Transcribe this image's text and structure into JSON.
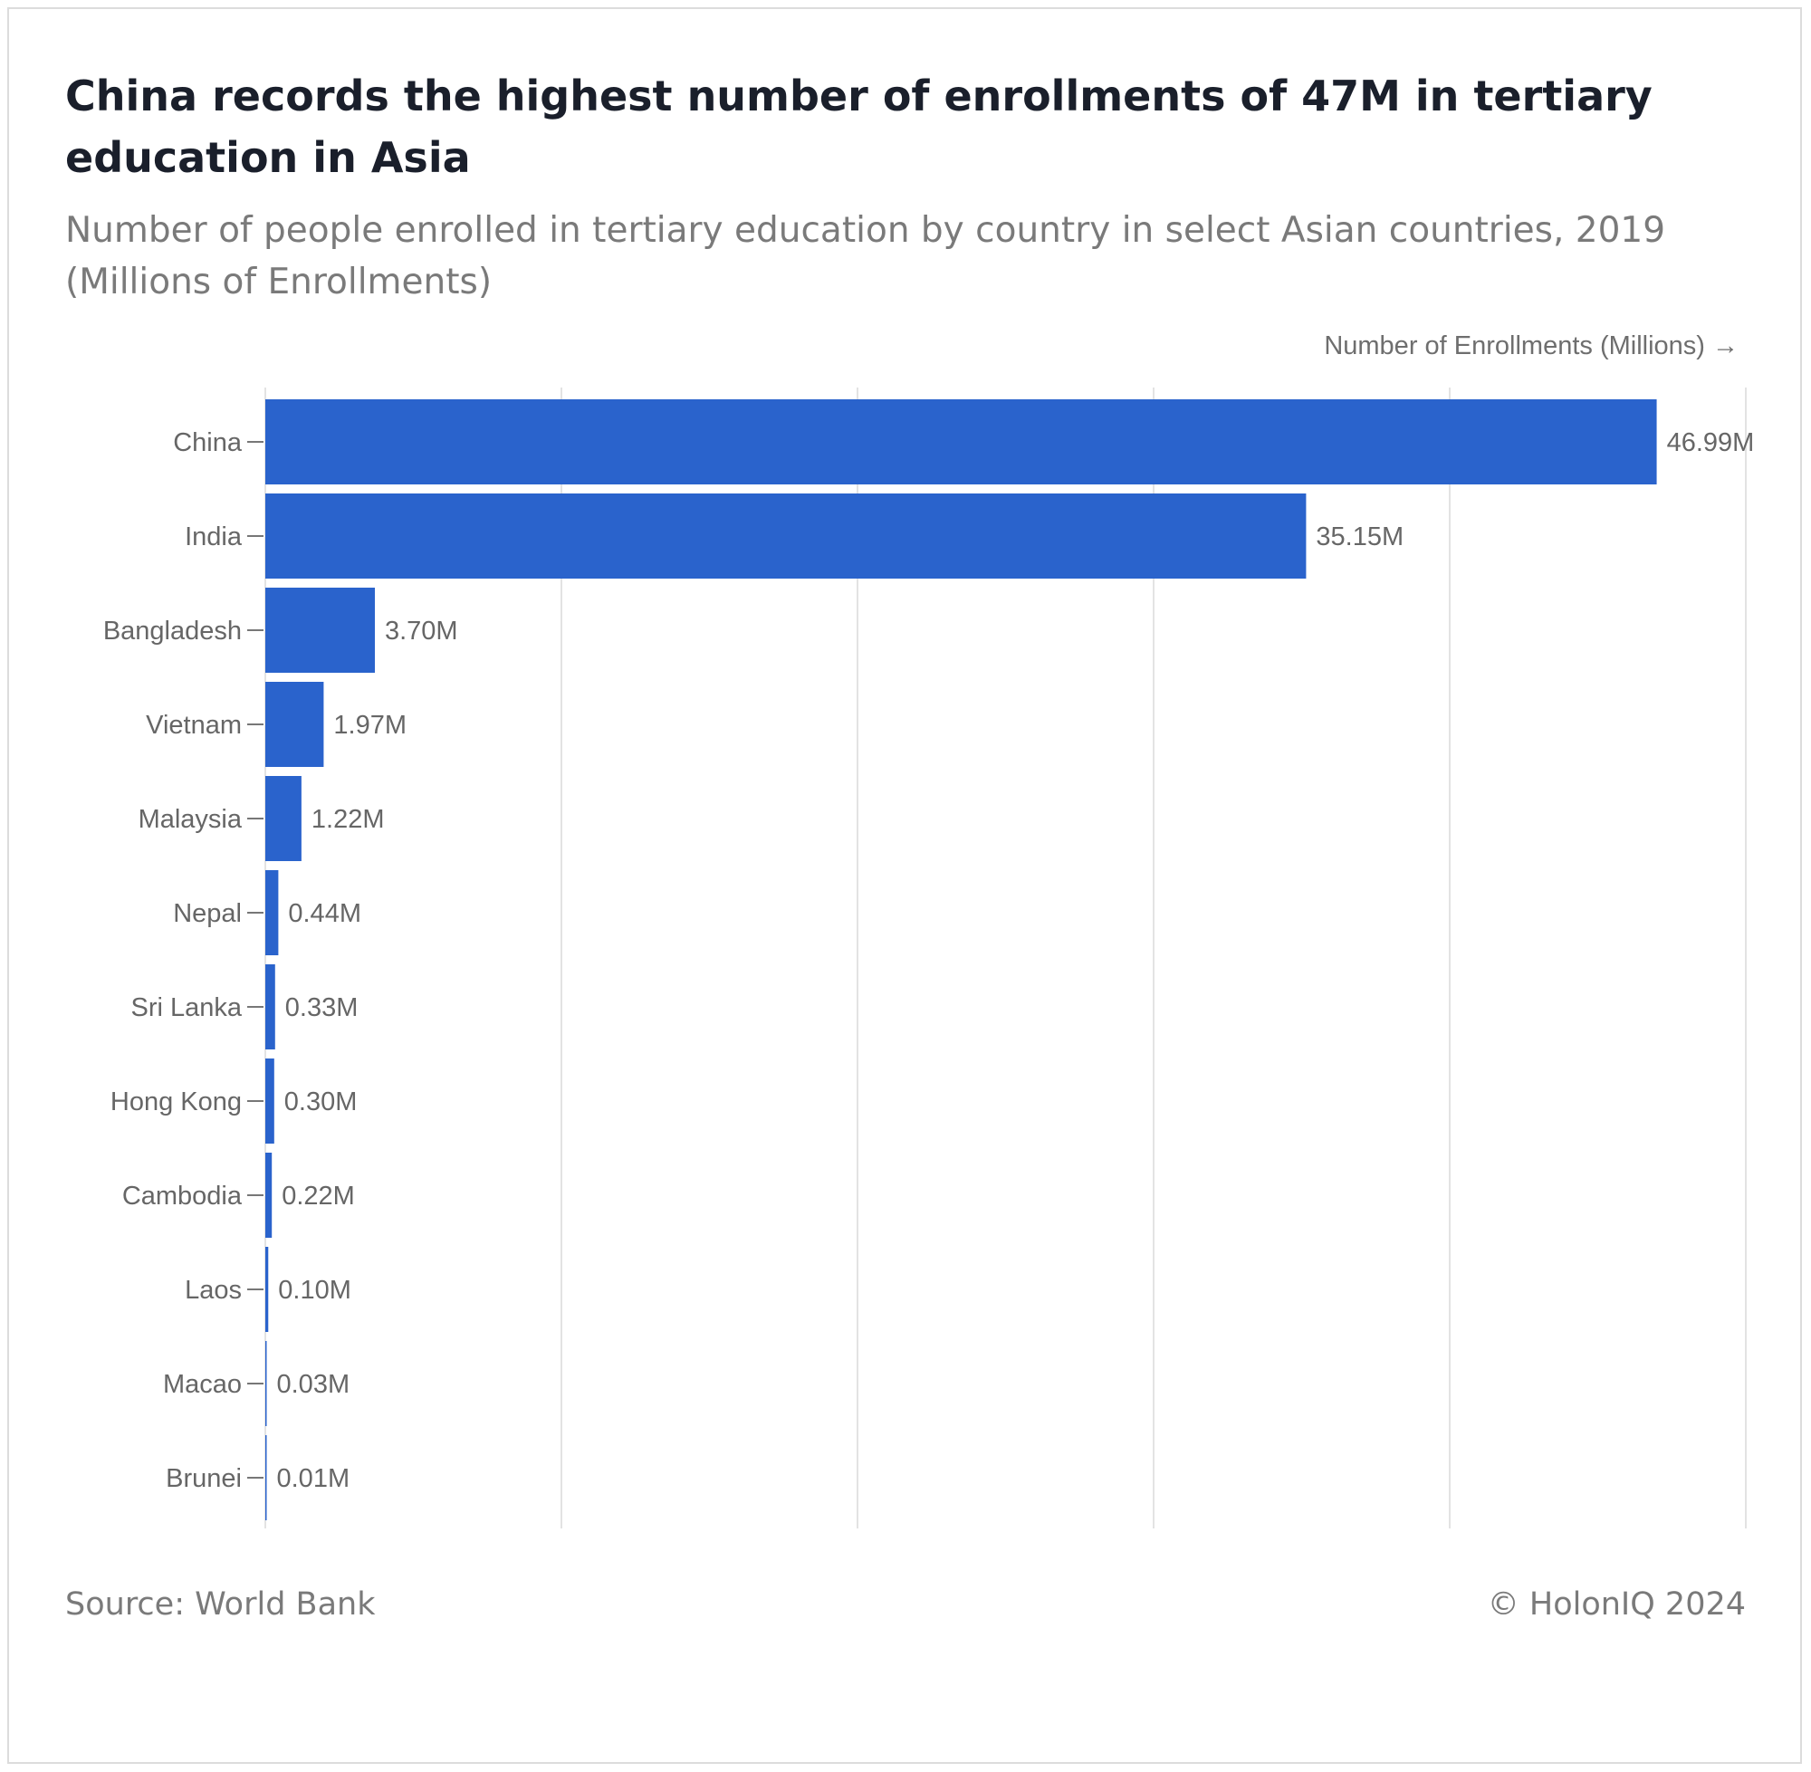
{
  "title": "China records the highest number of enrollments of 47M in tertiary education in Asia",
  "subtitle": "Number of people enrolled in tertiary education by country in select Asian countries, 2019 (Millions of Enrollments)",
  "source": "Source: World Bank",
  "copyright": "© HolonIQ 2024",
  "colors": {
    "bar": "#2a63cc",
    "grid": "#e3e3e3",
    "text": "#666666"
  },
  "chart_data": {
    "type": "bar",
    "orientation": "horizontal",
    "categories": [
      "China",
      "India",
      "Bangladesh",
      "Vietnam",
      "Malaysia",
      "Nepal",
      "Sri Lanka",
      "Hong Kong",
      "Cambodia",
      "Laos",
      "Macao",
      "Brunei"
    ],
    "values": [
      46.99,
      35.15,
      3.7,
      1.97,
      1.22,
      0.44,
      0.33,
      0.3,
      0.22,
      0.1,
      0.03,
      0.01
    ],
    "value_labels": [
      "46.99M",
      "35.15M",
      "3.70M",
      "1.97M",
      "1.22M",
      "0.44M",
      "0.33M",
      "0.30M",
      "0.22M",
      "0.10M",
      "0.03M",
      "0.01M"
    ],
    "xlabel": "Number of Enrollments (Millions) →",
    "ylabel": "",
    "xlim": [
      0,
      50
    ],
    "x_gridlines": [
      0,
      10,
      20,
      30,
      40,
      50
    ],
    "grid": true,
    "legend": "none"
  }
}
